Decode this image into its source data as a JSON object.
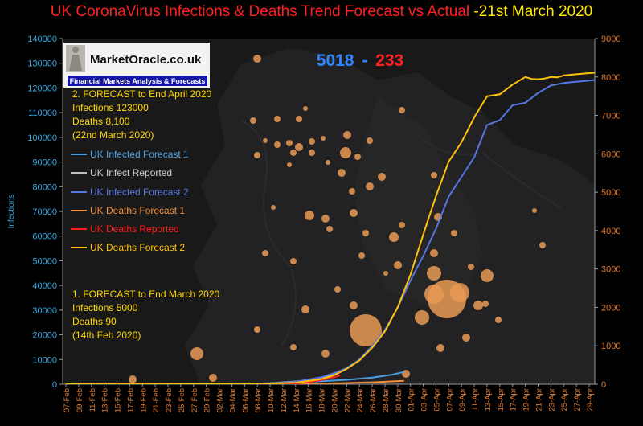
{
  "chart_data": {
    "type": "line",
    "title": "UK CoronaVirus Infections & Deaths Trend Forecast vs Actual",
    "title_date": "-21st March 2020",
    "ylabel": "Infections",
    "ylim_left": [
      0,
      140000
    ],
    "ylim_right": [
      0,
      9000
    ],
    "yticks_left": [
      0,
      10000,
      20000,
      30000,
      40000,
      50000,
      60000,
      70000,
      80000,
      90000,
      100000,
      110000,
      120000,
      130000,
      140000
    ],
    "yticks_right": [
      0,
      1000,
      2000,
      3000,
      4000,
      5000,
      6000,
      7000,
      8000,
      9000
    ],
    "x_labels": [
      "07-Feb",
      "09-Feb",
      "11-Feb",
      "13-Feb",
      "15-Feb",
      "17-Feb",
      "19-Feb",
      "21-Feb",
      "23-Feb",
      "25-Feb",
      "27-Feb",
      "29-Feb",
      "02-Mar",
      "04-Mar",
      "06-Mar",
      "08-Mar",
      "10-Mar",
      "12-Mar",
      "14-Mar",
      "16-Mar",
      "18-Mar",
      "20-Mar",
      "22-Mar",
      "24-Mar",
      "26-Mar",
      "28-Mar",
      "30-Mar",
      "01-Apr",
      "03-Apr",
      "05-Apr",
      "07-Apr",
      "09-Apr",
      "11-Apr",
      "13-Apr",
      "15-Apr",
      "17-Apr",
      "19-Apr",
      "21-Apr",
      "23-Apr",
      "25-Apr",
      "27-Apr",
      "29-Apr"
    ],
    "grid": false,
    "legend_position": "left",
    "series": [
      {
        "name": "UK Infected Forecast 1",
        "axis": "left",
        "color": "#4aa0e0",
        "points": [
          [
            "07-Feb",
            0
          ],
          [
            "20-Feb",
            50
          ],
          [
            "01-Mar",
            150
          ],
          [
            "10-Mar",
            350
          ],
          [
            "14-Mar",
            700
          ],
          [
            "18-Mar",
            1200
          ],
          [
            "22-Mar",
            1800
          ],
          [
            "26-Mar",
            2700
          ],
          [
            "29-Mar",
            3800
          ],
          [
            "31-Mar",
            5000
          ]
        ]
      },
      {
        "name": "UK Infect Reported",
        "axis": "left",
        "color": "#c0c0c0",
        "points": [
          [
            "07-Feb",
            0
          ],
          [
            "01-Mar",
            30
          ],
          [
            "06-Mar",
            160
          ],
          [
            "10-Mar",
            380
          ],
          [
            "14-Mar",
            1140
          ],
          [
            "16-Mar",
            1540
          ],
          [
            "18-Mar",
            2620
          ],
          [
            "20-Mar",
            3980
          ],
          [
            "21-Mar",
            5018
          ]
        ]
      },
      {
        "name": "UK Infected Forecast 2",
        "axis": "left",
        "color": "#5575e0",
        "points": [
          [
            "07-Feb",
            0
          ],
          [
            "01-Mar",
            50
          ],
          [
            "10-Mar",
            300
          ],
          [
            "14-Mar",
            1000
          ],
          [
            "18-Mar",
            2800
          ],
          [
            "20-Mar",
            4500
          ],
          [
            "22-Mar",
            6500
          ],
          [
            "24-Mar",
            10000
          ],
          [
            "26-Mar",
            15500
          ],
          [
            "28-Mar",
            22000
          ],
          [
            "30-Mar",
            31000
          ],
          [
            "01-Apr",
            42000
          ],
          [
            "03-Apr",
            52000
          ],
          [
            "05-Apr",
            63000
          ],
          [
            "07-Apr",
            76000
          ],
          [
            "09-Apr",
            84000
          ],
          [
            "11-Apr",
            92000
          ],
          [
            "13-Apr",
            105000
          ],
          [
            "15-Apr",
            107000
          ],
          [
            "17-Apr",
            113000
          ],
          [
            "19-Apr",
            114000
          ],
          [
            "21-Apr",
            118000
          ],
          [
            "23-Apr",
            121000
          ],
          [
            "25-Apr",
            122000
          ],
          [
            "27-Apr",
            122500
          ],
          [
            "29-Apr",
            123000
          ],
          [
            "30-Apr",
            123200
          ]
        ]
      },
      {
        "name": "UK Deaths Forecast 1",
        "axis": "right",
        "color": "#f0903a",
        "points": [
          [
            "07-Feb",
            0
          ],
          [
            "01-Mar",
            2
          ],
          [
            "14-Mar",
            10
          ],
          [
            "21-Mar",
            25
          ],
          [
            "26-Mar",
            50
          ],
          [
            "31-Mar",
            90
          ]
        ]
      },
      {
        "name": "UK Deaths Reported",
        "axis": "right",
        "color": "#ff1a1a",
        "points": [
          [
            "07-Feb",
            0
          ],
          [
            "06-Mar",
            1
          ],
          [
            "10-Mar",
            6
          ],
          [
            "14-Mar",
            21
          ],
          [
            "16-Mar",
            55
          ],
          [
            "18-Mar",
            104
          ],
          [
            "20-Mar",
            177
          ],
          [
            "21-Mar",
            233
          ]
        ]
      },
      {
        "name": "UK Deaths Forecast 2",
        "axis": "right",
        "color": "#ffc20a",
        "points": [
          [
            "07-Feb",
            0
          ],
          [
            "01-Mar",
            3
          ],
          [
            "10-Mar",
            15
          ],
          [
            "14-Mar",
            40
          ],
          [
            "18-Mar",
            130
          ],
          [
            "20-Mar",
            230
          ],
          [
            "22-Mar",
            400
          ],
          [
            "24-Mar",
            620
          ],
          [
            "26-Mar",
            950
          ],
          [
            "28-Mar",
            1380
          ],
          [
            "30-Mar",
            2000
          ],
          [
            "01-Apr",
            2850
          ],
          [
            "03-Apr",
            3900
          ],
          [
            "05-Apr",
            4900
          ],
          [
            "07-Apr",
            5800
          ],
          [
            "09-Apr",
            6300
          ],
          [
            "11-Apr",
            6950
          ],
          [
            "13-Apr",
            7500
          ],
          [
            "15-Apr",
            7550
          ],
          [
            "17-Apr",
            7800
          ],
          [
            "19-Apr",
            8000
          ],
          [
            "20-Apr",
            7950
          ],
          [
            "21-Apr",
            7940
          ],
          [
            "22-Apr",
            7960
          ],
          [
            "23-Apr",
            8000
          ],
          [
            "24-Apr",
            7990
          ],
          [
            "25-Apr",
            8040
          ],
          [
            "27-Apr",
            8070
          ],
          [
            "29-Apr",
            8100
          ],
          [
            "30-Apr",
            8110
          ]
        ]
      }
    ],
    "annotations": {
      "live_infections": "5018",
      "live_separator": "-",
      "live_deaths": "233",
      "forecast2": [
        "2. FORECAST to End April 2020",
        "Infections  123000",
        "Deaths 8,100",
        "(22nd March 2020)"
      ],
      "forecast1": [
        "1. FORECAST to End March 2020",
        "Infections  5000",
        "Deaths 90",
        "(14th Feb 2020)"
      ]
    }
  },
  "logo": {
    "name": "MarketOracle.co.uk",
    "tagline": "Financial Markets Analysis & Forecasts"
  },
  "colors": {
    "left_axis": "#3aa6dc",
    "right_axis": "#e07a30",
    "plot_bg": "#1a191a",
    "bubble": "#e99a55",
    "annotation_text": "#ffd700"
  }
}
